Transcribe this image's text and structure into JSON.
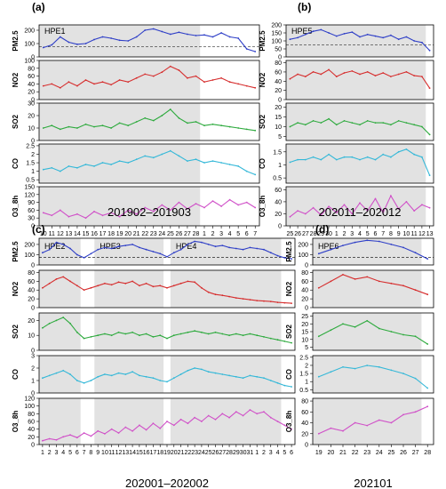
{
  "chart_data": [
    {
      "type": "line",
      "panel_label": "(a)",
      "period_label": "201902–201903",
      "x_ticks": [
        "10",
        "11",
        "12",
        "13",
        "14",
        "15",
        "16",
        "17",
        "18",
        "19",
        "20",
        "21",
        "22",
        "23",
        "24",
        "25",
        "26",
        "27",
        "28",
        "1",
        "2",
        "3",
        "4",
        "5",
        "6",
        "7"
      ],
      "episodes": [
        {
          "label": "HPE1",
          "from": "10",
          "to": "28"
        }
      ],
      "series": [
        {
          "name": "PM2.5",
          "color": "#2f3fc7",
          "yticks": [
            0,
            100,
            200
          ],
          "ylim": [
            0,
            240
          ],
          "threshold": 75,
          "values": [
            70,
            90,
            150,
            110,
            95,
            100,
            130,
            150,
            140,
            125,
            120,
            150,
            200,
            210,
            190,
            170,
            185,
            170,
            160,
            165,
            150,
            180,
            150,
            140,
            60,
            40
          ]
        },
        {
          "name": "NO2",
          "color": "#d62d2d",
          "yticks": [
            0,
            20,
            40,
            60,
            80,
            100
          ],
          "ylim": [
            0,
            100
          ],
          "values": [
            35,
            40,
            30,
            45,
            35,
            50,
            40,
            45,
            38,
            50,
            45,
            55,
            65,
            60,
            70,
            85,
            75,
            55,
            60,
            45,
            50,
            55,
            45,
            40,
            35,
            30
          ]
        },
        {
          "name": "SO2",
          "color": "#2eaa3e",
          "yticks": [
            0,
            10,
            20,
            30
          ],
          "ylim": [
            0,
            30
          ],
          "values": [
            10,
            12,
            9,
            11,
            10,
            13,
            11,
            12,
            10,
            14,
            12,
            15,
            18,
            16,
            20,
            25,
            18,
            14,
            15,
            12,
            13,
            12,
            11,
            10,
            9,
            8
          ]
        },
        {
          "name": "CO",
          "color": "#35b8d8",
          "yticks": [
            0.5,
            1.0,
            1.5,
            2.0,
            2.5
          ],
          "ylim": [
            0.3,
            2.6
          ],
          "values": [
            1.1,
            1.2,
            1.0,
            1.3,
            1.2,
            1.4,
            1.3,
            1.5,
            1.4,
            1.6,
            1.5,
            1.7,
            1.9,
            1.8,
            2.0,
            2.2,
            1.9,
            1.6,
            1.7,
            1.5,
            1.6,
            1.5,
            1.4,
            1.3,
            1.0,
            0.8
          ]
        },
        {
          "name": "O3_8h",
          "color": "#d050c8",
          "yticks": [
            0,
            30,
            60,
            90,
            120,
            150
          ],
          "ylim": [
            0,
            150
          ],
          "values": [
            50,
            40,
            60,
            35,
            45,
            30,
            55,
            40,
            50,
            35,
            60,
            45,
            70,
            55,
            80,
            60,
            90,
            65,
            85,
            70,
            95,
            75,
            100,
            80,
            90,
            70
          ]
        }
      ]
    },
    {
      "type": "line",
      "panel_label": "(b)",
      "period_label": "202011–202012",
      "x_ticks": [
        "25",
        "26",
        "27",
        "28",
        "29",
        "30",
        "1",
        "2",
        "3",
        "4",
        "5",
        "6",
        "7",
        "8",
        "9",
        "10",
        "11",
        "12",
        "13"
      ],
      "episodes": [
        {
          "label": "HPE5",
          "from": "25",
          "to": "12"
        }
      ],
      "series": [
        {
          "name": "PM2.5",
          "color": "#2f3fc7",
          "yticks": [
            0,
            50,
            100,
            150,
            200
          ],
          "ylim": [
            0,
            200
          ],
          "threshold": 75,
          "values": [
            110,
            120,
            140,
            160,
            170,
            150,
            130,
            145,
            155,
            125,
            140,
            130,
            120,
            135,
            110,
            125,
            100,
            90,
            40
          ]
        },
        {
          "name": "NO2",
          "color": "#d62d2d",
          "yticks": [
            0,
            20,
            40,
            60,
            80
          ],
          "ylim": [
            0,
            85
          ],
          "values": [
            45,
            55,
            50,
            60,
            55,
            65,
            50,
            58,
            62,
            55,
            60,
            52,
            58,
            50,
            55,
            60,
            52,
            50,
            25
          ]
        },
        {
          "name": "SO2",
          "color": "#2eaa3e",
          "yticks": [
            5,
            10,
            15,
            20
          ],
          "ylim": [
            3,
            22
          ],
          "values": [
            10,
            12,
            11,
            13,
            12,
            14,
            11,
            13,
            12,
            11,
            13,
            12,
            12,
            11,
            13,
            12,
            11,
            10,
            6
          ]
        },
        {
          "name": "CO",
          "color": "#35b8d8",
          "yticks": [
            0.5,
            1.0,
            1.5
          ],
          "ylim": [
            0.3,
            1.8
          ],
          "values": [
            1.1,
            1.2,
            1.2,
            1.3,
            1.2,
            1.4,
            1.2,
            1.3,
            1.3,
            1.2,
            1.3,
            1.2,
            1.4,
            1.3,
            1.5,
            1.6,
            1.4,
            1.3,
            0.6
          ]
        },
        {
          "name": "O3_8h",
          "color": "#d050c8",
          "yticks": [
            0,
            20,
            40,
            60
          ],
          "ylim": [
            0,
            65
          ],
          "values": [
            15,
            25,
            20,
            30,
            18,
            32,
            22,
            35,
            20,
            38,
            25,
            45,
            22,
            50,
            28,
            40,
            25,
            35,
            30
          ]
        }
      ]
    },
    {
      "type": "line",
      "panel_label": "(c)",
      "period_label": "202001–202002",
      "x_ticks": [
        "1",
        "2",
        "3",
        "4",
        "5",
        "6",
        "7",
        "8",
        "9",
        "10",
        "11",
        "12",
        "13",
        "14",
        "15",
        "16",
        "17",
        "18",
        "19",
        "20",
        "21",
        "22",
        "23",
        "24",
        "25",
        "26",
        "27",
        "28",
        "29",
        "30",
        "31",
        "1",
        "2",
        "3",
        "4",
        "5",
        "6"
      ],
      "episodes": [
        {
          "label": "HPE2",
          "from": "1",
          "to": "6"
        },
        {
          "label": "HPE3",
          "from": "9",
          "to": "18"
        },
        {
          "label": "HPE4",
          "from": "20",
          "to": "4"
        }
      ],
      "series": [
        {
          "name": "PM2.5",
          "color": "#2f3fc7",
          "yticks": [
            0,
            100,
            200
          ],
          "ylim": [
            0,
            260
          ],
          "threshold": 75,
          "values": [
            120,
            150,
            220,
            200,
            160,
            100,
            70,
            110,
            150,
            170,
            160,
            180,
            190,
            200,
            170,
            150,
            130,
            110,
            80,
            120,
            150,
            200,
            230,
            220,
            200,
            180,
            190,
            170,
            160,
            150,
            170,
            160,
            150,
            120,
            90,
            70,
            60
          ]
        },
        {
          "name": "NO2",
          "color": "#d62d2d",
          "yticks": [
            0,
            20,
            40,
            60,
            80
          ],
          "ylim": [
            0,
            85
          ],
          "values": [
            45,
            55,
            65,
            70,
            60,
            50,
            40,
            45,
            50,
            55,
            52,
            58,
            55,
            60,
            50,
            55,
            48,
            50,
            45,
            50,
            55,
            60,
            58,
            45,
            35,
            30,
            28,
            25,
            22,
            20,
            18,
            16,
            15,
            14,
            12,
            11,
            10
          ]
        },
        {
          "name": "SO2",
          "color": "#2eaa3e",
          "yticks": [
            0,
            10,
            20
          ],
          "ylim": [
            0,
            25
          ],
          "values": [
            15,
            18,
            20,
            22,
            18,
            12,
            8,
            9,
            10,
            11,
            10,
            12,
            11,
            12,
            10,
            11,
            9,
            10,
            8,
            10,
            11,
            12,
            13,
            12,
            11,
            12,
            11,
            10,
            11,
            10,
            11,
            10,
            9,
            8,
            7,
            6,
            5
          ]
        },
        {
          "name": "CO",
          "color": "#35b8d8",
          "yticks": [
            0,
            1,
            2,
            3
          ],
          "ylim": [
            0,
            3
          ],
          "values": [
            1.2,
            1.4,
            1.6,
            1.8,
            1.5,
            1.0,
            0.8,
            1.0,
            1.3,
            1.5,
            1.4,
            1.6,
            1.5,
            1.7,
            1.4,
            1.3,
            1.2,
            1.0,
            0.9,
            1.2,
            1.5,
            1.8,
            2.0,
            1.9,
            1.7,
            1.6,
            1.5,
            1.4,
            1.3,
            1.2,
            1.4,
            1.3,
            1.2,
            1.0,
            0.8,
            0.6,
            0.5
          ]
        },
        {
          "name": "O3_8h",
          "color": "#d050c8",
          "yticks": [
            0,
            20,
            40,
            60,
            80,
            100,
            120
          ],
          "ylim": [
            0,
            120
          ],
          "values": [
            10,
            15,
            12,
            20,
            25,
            18,
            30,
            22,
            35,
            28,
            40,
            30,
            45,
            35,
            50,
            38,
            55,
            42,
            60,
            50,
            65,
            55,
            70,
            60,
            75,
            65,
            80,
            70,
            85,
            75,
            90,
            80,
            85,
            70,
            60,
            50,
            40
          ]
        }
      ]
    },
    {
      "type": "line",
      "panel_label": "(d)",
      "period_label": "202101",
      "x_ticks": [
        "19",
        "20",
        "21",
        "22",
        "23",
        "24",
        "25",
        "26",
        "27",
        "28"
      ],
      "episodes": [
        {
          "label": "HPE6",
          "from": "19",
          "to": "27"
        }
      ],
      "series": [
        {
          "name": "PM2.5",
          "color": "#2f3fc7",
          "yticks": [
            0,
            100,
            200
          ],
          "ylim": [
            0,
            260
          ],
          "threshold": 75,
          "values": [
            110,
            150,
            190,
            220,
            240,
            230,
            200,
            170,
            120,
            60
          ]
        },
        {
          "name": "NO2",
          "color": "#d62d2d",
          "yticks": [
            0,
            20,
            40,
            60,
            80
          ],
          "ylim": [
            0,
            85
          ],
          "values": [
            45,
            60,
            75,
            65,
            70,
            60,
            55,
            50,
            40,
            30
          ]
        },
        {
          "name": "SO2",
          "color": "#2eaa3e",
          "yticks": [
            5,
            10,
            15,
            20,
            25
          ],
          "ylim": [
            3,
            27
          ],
          "values": [
            12,
            16,
            20,
            18,
            22,
            17,
            15,
            13,
            12,
            7
          ]
        },
        {
          "name": "CO",
          "color": "#35b8d8",
          "yticks": [
            0.5,
            1.0,
            1.5,
            2.0,
            2.5
          ],
          "ylim": [
            0.3,
            2.6
          ],
          "values": [
            1.3,
            1.6,
            1.9,
            1.8,
            2.0,
            1.9,
            1.7,
            1.5,
            1.2,
            0.6
          ]
        },
        {
          "name": "O3_8h",
          "color": "#d050c8",
          "yticks": [
            0,
            20,
            40,
            60,
            80
          ],
          "ylim": [
            0,
            85
          ],
          "values": [
            20,
            30,
            25,
            40,
            35,
            45,
            40,
            55,
            60,
            70
          ]
        }
      ]
    }
  ]
}
